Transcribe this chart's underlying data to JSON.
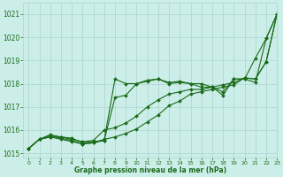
{
  "title": "Graphe pression niveau de la mer (hPa)",
  "bg_color": "#cceee8",
  "grid_color": "#aad4ce",
  "line_color": "#1a6b1a",
  "xlim": [
    -0.5,
    23
  ],
  "ylim": [
    1014.8,
    1021.5
  ],
  "yticks": [
    1015,
    1016,
    1017,
    1018,
    1019,
    1020,
    1021
  ],
  "xticks": [
    0,
    1,
    2,
    3,
    4,
    5,
    6,
    7,
    8,
    9,
    10,
    11,
    12,
    13,
    14,
    15,
    16,
    17,
    18,
    19,
    20,
    21,
    22,
    23
  ],
  "series1_x": [
    0,
    1,
    2,
    3,
    4,
    5,
    6,
    7,
    8,
    9,
    10,
    11,
    12,
    13,
    14,
    15,
    16,
    17,
    18,
    19,
    20,
    21,
    22,
    23
  ],
  "series1_y": [
    1015.2,
    1015.6,
    1015.8,
    1015.7,
    1015.65,
    1015.45,
    1015.5,
    1015.55,
    1018.2,
    1018.0,
    1018.0,
    1018.15,
    1018.2,
    1018.05,
    1018.1,
    1018.0,
    1018.0,
    1017.85,
    1017.5,
    1018.2,
    1018.2,
    1019.1,
    1019.95,
    1021.0
  ],
  "series2_x": [
    0,
    1,
    2,
    3,
    4,
    5,
    6,
    7,
    8,
    9,
    10,
    11,
    12,
    13,
    14,
    15,
    16,
    17,
    18,
    19,
    20,
    21,
    22,
    23
  ],
  "series2_y": [
    1015.2,
    1015.6,
    1015.75,
    1015.65,
    1015.55,
    1015.4,
    1015.45,
    1015.55,
    1017.4,
    1017.5,
    1018.0,
    1018.1,
    1018.2,
    1018.0,
    1018.05,
    1018.0,
    1017.85,
    1017.85,
    1017.65,
    1018.2,
    1018.2,
    1018.05,
    1019.95,
    1021.0
  ],
  "series3_x": [
    0,
    1,
    2,
    3,
    4,
    5,
    6,
    7,
    8,
    9,
    10,
    11,
    12,
    13,
    14,
    15,
    16,
    17,
    18,
    19,
    20,
    21,
    22,
    23
  ],
  "series3_y": [
    1015.2,
    1015.6,
    1015.7,
    1015.7,
    1015.6,
    1015.5,
    1015.55,
    1016.0,
    1016.1,
    1016.3,
    1016.6,
    1017.0,
    1017.3,
    1017.55,
    1017.65,
    1017.75,
    1017.75,
    1017.85,
    1017.95,
    1018.05,
    1018.25,
    1018.2,
    1018.95,
    1021.0
  ],
  "series4_x": [
    0,
    1,
    2,
    3,
    4,
    5,
    6,
    7,
    8,
    9,
    10,
    11,
    12,
    13,
    14,
    15,
    16,
    17,
    18,
    19,
    20,
    21,
    22,
    23
  ],
  "series4_y": [
    1015.2,
    1015.6,
    1015.7,
    1015.6,
    1015.5,
    1015.4,
    1015.45,
    1015.6,
    1015.7,
    1015.85,
    1016.05,
    1016.35,
    1016.65,
    1017.05,
    1017.25,
    1017.55,
    1017.65,
    1017.75,
    1017.85,
    1017.95,
    1018.25,
    1018.2,
    1018.95,
    1021.0
  ]
}
